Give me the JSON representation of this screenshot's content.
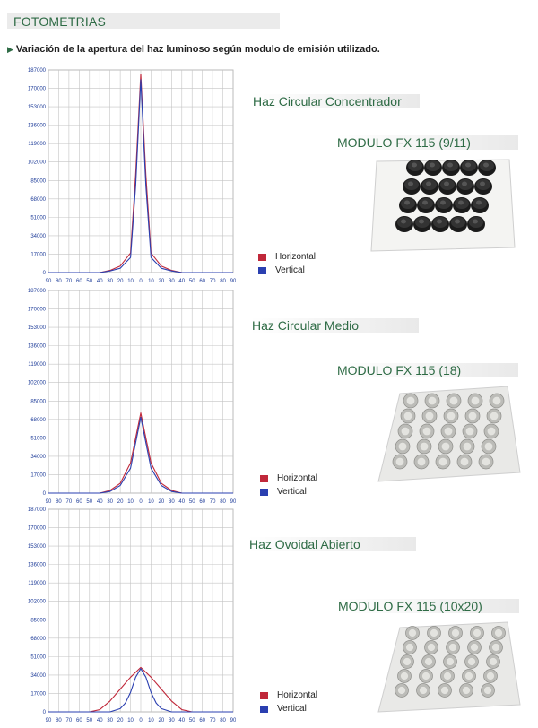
{
  "header": {
    "title": "FOTOMETRIAS"
  },
  "subtitle": "Variación de la apertura del haz luminoso según modulo de emisión utilizado.",
  "colors": {
    "horizontal": "#c0283a",
    "vertical": "#2a3fb0",
    "accent": "#2e6b45"
  },
  "sections": [
    {
      "beam_label": "Haz Circular Concentrador",
      "module_label": "MODULO FX 115 (9/11)",
      "legend": [
        "Horizontal",
        "Vertical"
      ]
    },
    {
      "beam_label": "Haz Circular Medio",
      "module_label": "MODULO FX 115 (18)",
      "legend": [
        "Horizontal",
        "Vertical"
      ]
    },
    {
      "beam_label": "Haz Ovoidal Abierto",
      "module_label": "MODULO FX 115 (10x20)",
      "legend": [
        "Horizontal",
        "Vertical"
      ]
    }
  ],
  "chart_data": [
    {
      "type": "line",
      "y_ticks": [
        "187000",
        "170000",
        "153000",
        "136000",
        "119000",
        "102000",
        "85000",
        "68000",
        "51000",
        "34000",
        "17000",
        "0"
      ],
      "x_ticks": [
        "90",
        "80",
        "70",
        "60",
        "50",
        "40",
        "30",
        "20",
        "10",
        "0",
        "10",
        "20",
        "30",
        "40",
        "50",
        "60",
        "70",
        "80",
        "90"
      ],
      "ylim": [
        0,
        187000
      ],
      "xlim": [
        -90,
        90
      ],
      "grid": true,
      "legend_position": "right",
      "series": [
        {
          "name": "Horizontal",
          "x": [
            -90,
            -40,
            -30,
            -20,
            -10,
            -5,
            0,
            5,
            10,
            20,
            30,
            40,
            90
          ],
          "y": [
            0,
            0,
            2000,
            6000,
            18000,
            90000,
            183000,
            90000,
            18000,
            6000,
            2000,
            0,
            0
          ]
        },
        {
          "name": "Vertical",
          "x": [
            -90,
            -40,
            -30,
            -20,
            -10,
            -5,
            0,
            5,
            10,
            20,
            30,
            40,
            90
          ],
          "y": [
            0,
            0,
            1500,
            4000,
            14000,
            80000,
            178000,
            80000,
            14000,
            4000,
            1500,
            0,
            0
          ]
        }
      ]
    },
    {
      "type": "line",
      "y_ticks": [
        "187000",
        "170000",
        "153000",
        "136000",
        "119000",
        "102000",
        "85000",
        "68000",
        "51000",
        "34000",
        "17000",
        "0"
      ],
      "x_ticks": [
        "90",
        "80",
        "70",
        "60",
        "50",
        "40",
        "30",
        "20",
        "10",
        "0",
        "10",
        "20",
        "30",
        "40",
        "50",
        "60",
        "70",
        "80",
        "90"
      ],
      "ylim": [
        0,
        187000
      ],
      "xlim": [
        -90,
        90
      ],
      "grid": true,
      "legend_position": "right",
      "series": [
        {
          "name": "Horizontal",
          "x": [
            -90,
            -40,
            -30,
            -20,
            -10,
            0,
            10,
            20,
            30,
            40,
            90
          ],
          "y": [
            0,
            0,
            2500,
            9000,
            28000,
            74000,
            28000,
            9000,
            2500,
            0,
            0
          ]
        },
        {
          "name": "Vertical",
          "x": [
            -90,
            -40,
            -30,
            -20,
            -10,
            0,
            10,
            20,
            30,
            40,
            90
          ],
          "y": [
            0,
            0,
            1500,
            7000,
            23000,
            70000,
            23000,
            7000,
            1500,
            0,
            0
          ]
        }
      ]
    },
    {
      "type": "line",
      "y_ticks": [
        "187000",
        "170000",
        "153000",
        "136000",
        "119000",
        "102000",
        "85000",
        "68000",
        "51000",
        "34000",
        "17000",
        "0"
      ],
      "x_ticks": [
        "90",
        "80",
        "70",
        "60",
        "50",
        "40",
        "30",
        "20",
        "10",
        "0",
        "10",
        "20",
        "30",
        "40",
        "50",
        "60",
        "70",
        "80",
        "90"
      ],
      "ylim": [
        0,
        187000
      ],
      "xlim": [
        -90,
        90
      ],
      "grid": true,
      "legend_position": "right",
      "series": [
        {
          "name": "Horizontal",
          "x": [
            -90,
            -50,
            -40,
            -30,
            -20,
            -10,
            0,
            10,
            20,
            30,
            40,
            50,
            90
          ],
          "y": [
            0,
            0,
            2000,
            10000,
            21000,
            32000,
            41000,
            32000,
            21000,
            10000,
            2000,
            0,
            0
          ]
        },
        {
          "name": "Vertical",
          "x": [
            -90,
            -30,
            -20,
            -15,
            -10,
            -5,
            0,
            5,
            10,
            15,
            20,
            30,
            90
          ],
          "y": [
            0,
            0,
            3000,
            8000,
            18000,
            32000,
            40000,
            32000,
            18000,
            8000,
            3000,
            0,
            0
          ]
        }
      ]
    }
  ]
}
